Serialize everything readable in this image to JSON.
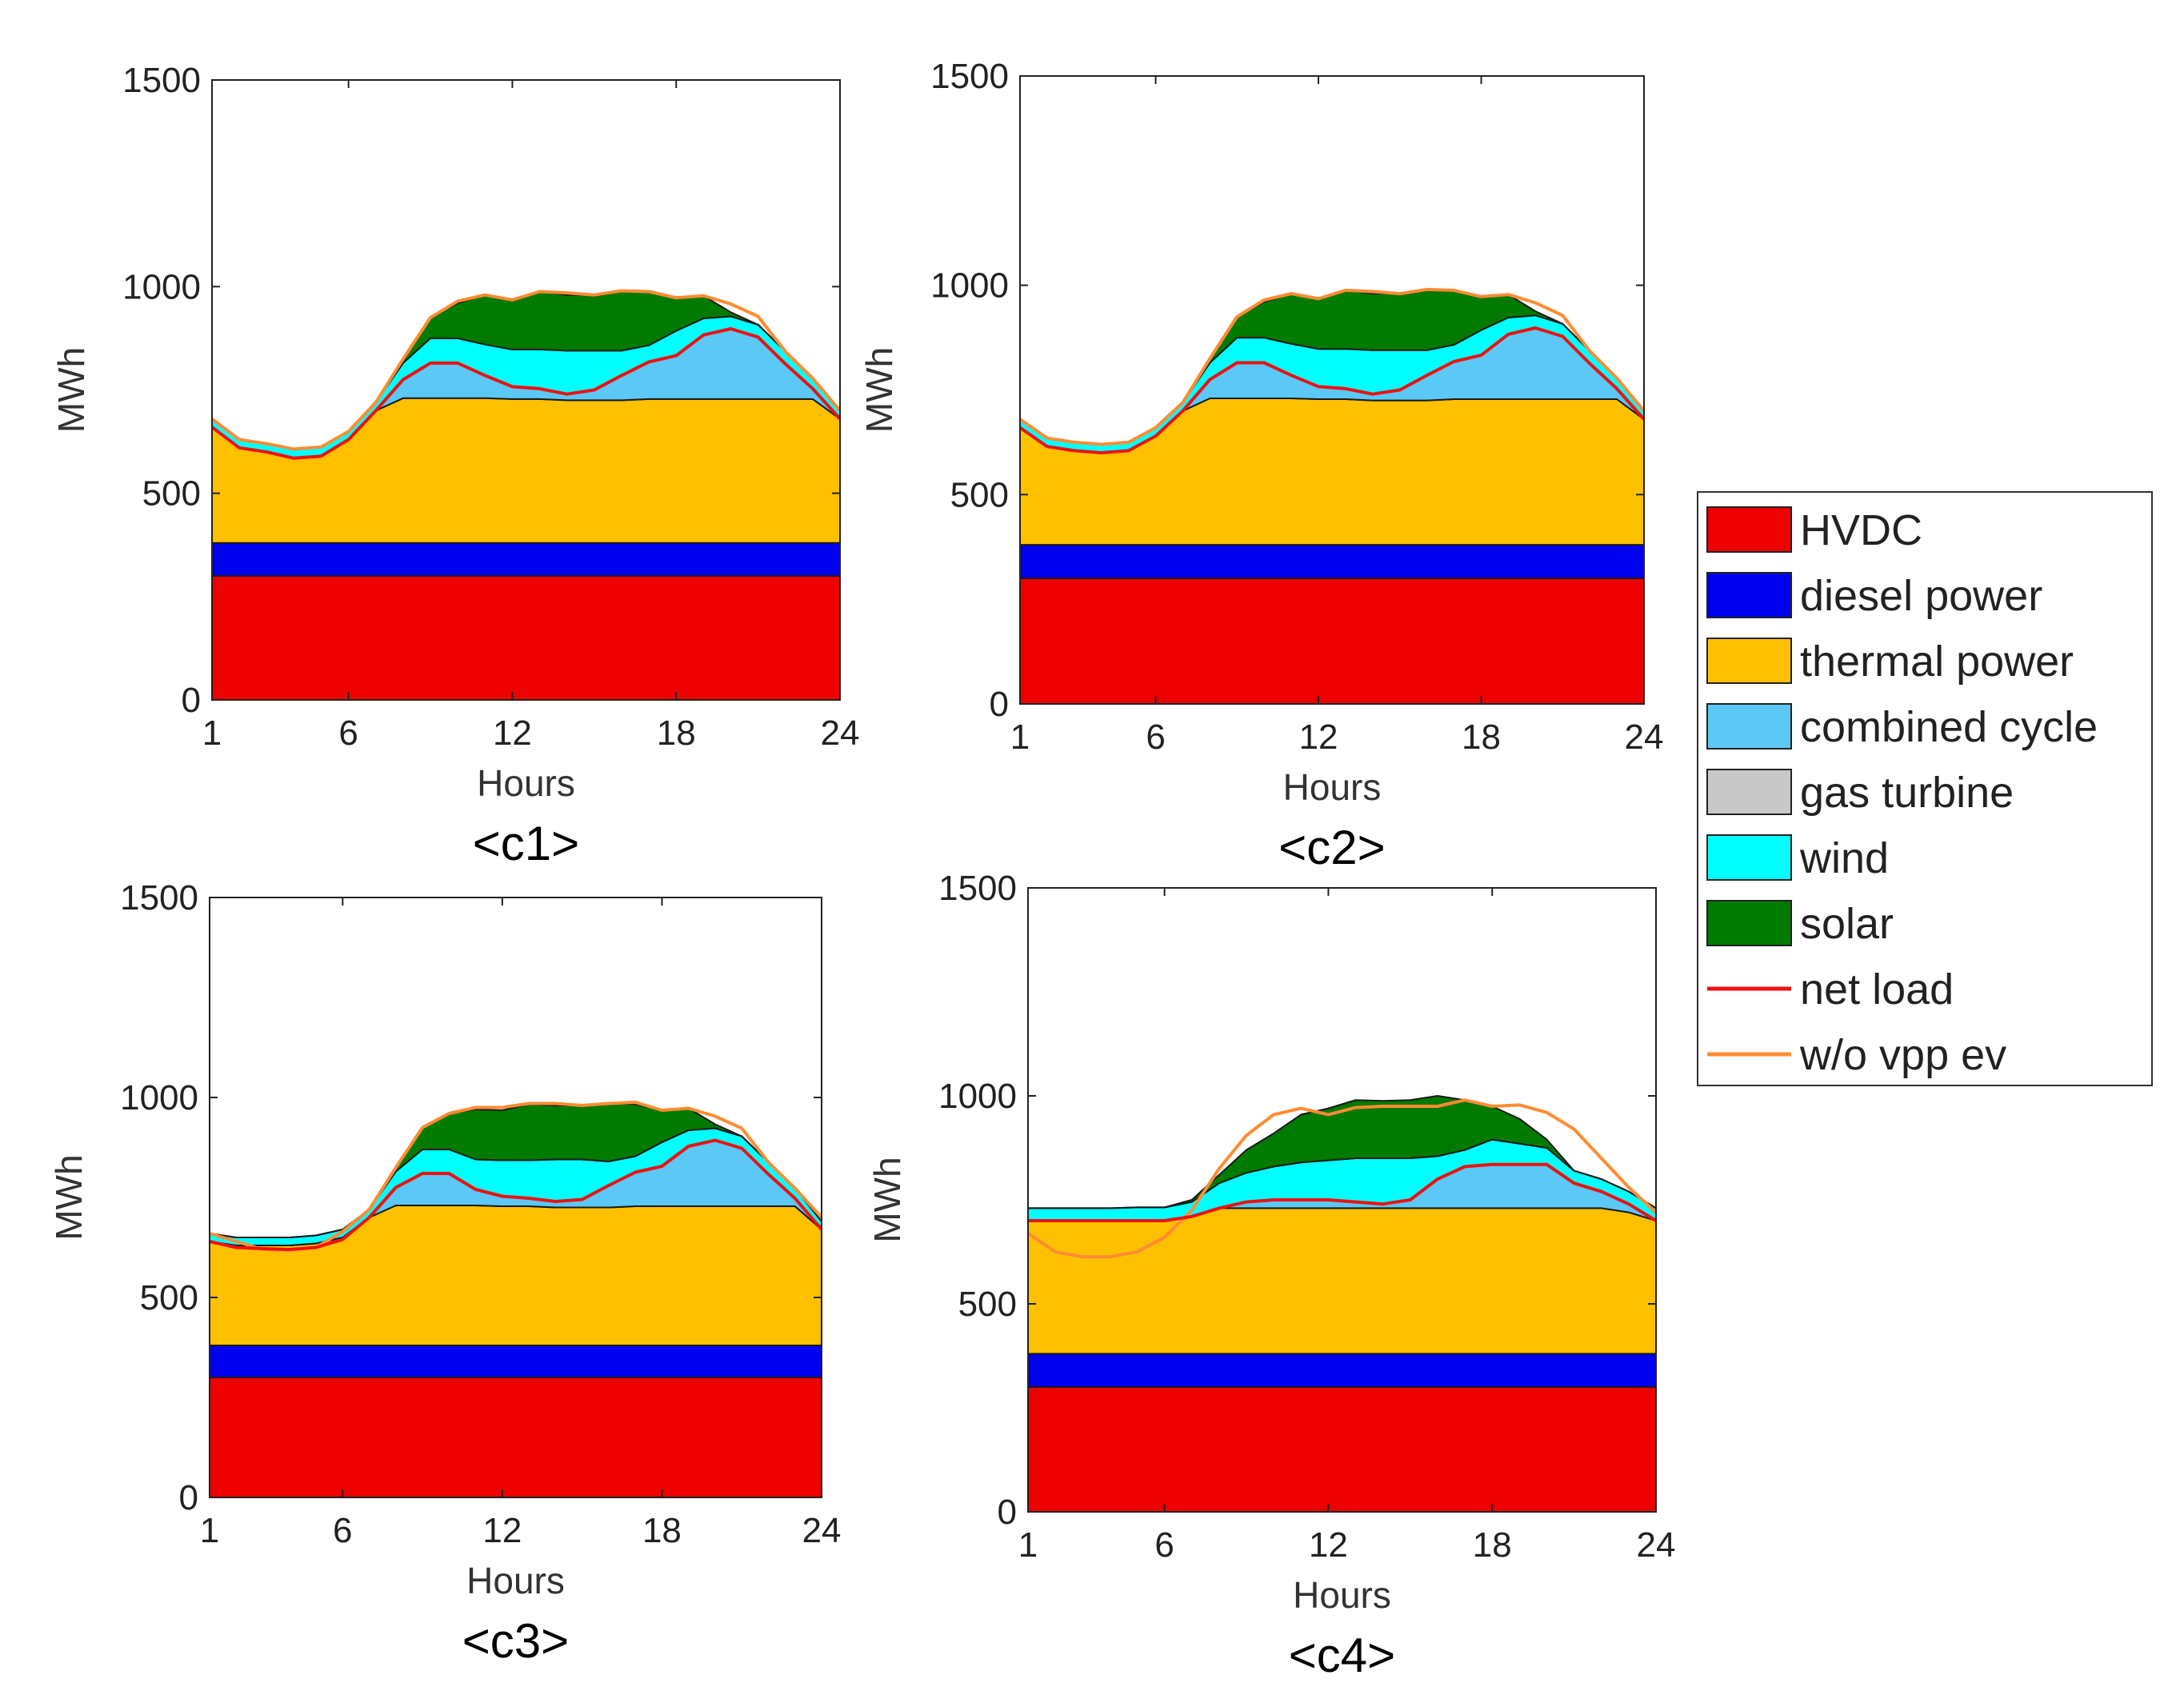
{
  "chart_data": [
    {
      "type": "area",
      "caption": "<c1>",
      "xlabel": "Hours",
      "ylabel": "MWh",
      "xlim": [
        1,
        24
      ],
      "ylim": [
        0,
        1500
      ],
      "xticks": [
        "1",
        "6",
        "12",
        "18",
        "24"
      ],
      "yticks": [
        "0",
        "500",
        "1000",
        "1500"
      ],
      "x": [
        1,
        2,
        3,
        4,
        5,
        6,
        7,
        8,
        9,
        10,
        11,
        12,
        13,
        14,
        15,
        16,
        17,
        18,
        19,
        20,
        21,
        22,
        23,
        24
      ],
      "series": [
        {
          "key": "hvdc",
          "values": [
            300,
            300,
            300,
            300,
            300,
            300,
            300,
            300,
            300,
            300,
            300,
            300,
            300,
            300,
            300,
            300,
            300,
            300,
            300,
            300,
            300,
            300,
            300,
            300
          ]
        },
        {
          "key": "diesel",
          "values": [
            80,
            80,
            80,
            80,
            80,
            80,
            80,
            80,
            80,
            80,
            80,
            80,
            80,
            80,
            80,
            80,
            80,
            80,
            80,
            80,
            80,
            80,
            80,
            80
          ]
        },
        {
          "key": "thermal",
          "values": [
            280,
            230,
            220,
            205,
            210,
            250,
            320,
            350,
            350,
            350,
            350,
            348,
            348,
            345,
            345,
            345,
            348,
            348,
            348,
            348,
            348,
            348,
            348,
            300
          ]
        },
        {
          "key": "combined",
          "values": [
            0,
            0,
            0,
            0,
            0,
            0,
            0,
            45,
            85,
            85,
            55,
            30,
            25,
            15,
            25,
            60,
            90,
            105,
            155,
            170,
            150,
            85,
            25,
            0
          ]
        },
        {
          "key": "gas",
          "values": [
            0,
            0,
            0,
            0,
            0,
            0,
            0,
            0,
            0,
            0,
            0,
            0,
            0,
            0,
            0,
            0,
            0,
            0,
            0,
            0,
            0,
            0,
            0,
            0
          ]
        },
        {
          "key": "wind",
          "values": [
            20,
            20,
            20,
            22,
            22,
            20,
            20,
            40,
            60,
            60,
            75,
            90,
            95,
            105,
            95,
            60,
            40,
            60,
            40,
            30,
            30,
            30,
            25,
            20
          ]
        },
        {
          "key": "solar",
          "values": [
            0,
            0,
            0,
            0,
            0,
            0,
            0,
            10,
            50,
            85,
            120,
            120,
            140,
            135,
            135,
            145,
            130,
            80,
            55,
            10,
            0,
            0,
            0,
            0
          ]
        }
      ],
      "net_load": [
        660,
        610,
        600,
        585,
        590,
        630,
        700,
        775,
        815,
        815,
        785,
        758,
        753,
        740,
        750,
        785,
        818,
        833,
        883,
        898,
        878,
        813,
        753,
        680
      ],
      "no_vpp": [
        680,
        630,
        620,
        607,
        612,
        650,
        720,
        825,
        925,
        965,
        980,
        968,
        988,
        985,
        980,
        990,
        988,
        973,
        978,
        958,
        928,
        843,
        778,
        700
      ]
    },
    {
      "type": "area",
      "caption": "<c2>",
      "xlabel": "Hours",
      "ylabel": "MWh",
      "xlim": [
        1,
        24
      ],
      "ylim": [
        0,
        1500
      ],
      "xticks": [
        "1",
        "6",
        "12",
        "18",
        "24"
      ],
      "yticks": [
        "0",
        "500",
        "1000",
        "1500"
      ],
      "x": [
        1,
        2,
        3,
        4,
        5,
        6,
        7,
        8,
        9,
        10,
        11,
        12,
        13,
        14,
        15,
        16,
        17,
        18,
        19,
        20,
        21,
        22,
        23,
        24
      ],
      "series": [
        {
          "key": "hvdc",
          "values": [
            300,
            300,
            300,
            300,
            300,
            300,
            300,
            300,
            300,
            300,
            300,
            300,
            300,
            300,
            300,
            300,
            300,
            300,
            300,
            300,
            300,
            300,
            300,
            300
          ]
        },
        {
          "key": "diesel",
          "values": [
            80,
            80,
            80,
            80,
            80,
            80,
            80,
            80,
            80,
            80,
            80,
            80,
            80,
            80,
            80,
            80,
            80,
            80,
            80,
            80,
            80,
            80,
            80,
            80
          ]
        },
        {
          "key": "thermal",
          "values": [
            280,
            235,
            225,
            220,
            225,
            260,
            320,
            350,
            350,
            350,
            350,
            348,
            348,
            345,
            345,
            345,
            348,
            348,
            348,
            348,
            348,
            348,
            348,
            300
          ]
        },
        {
          "key": "combined",
          "values": [
            0,
            0,
            0,
            0,
            0,
            0,
            0,
            45,
            85,
            85,
            55,
            30,
            25,
            15,
            25,
            60,
            90,
            105,
            155,
            170,
            150,
            85,
            25,
            0
          ]
        },
        {
          "key": "gas",
          "values": [
            0,
            0,
            0,
            0,
            0,
            0,
            0,
            0,
            0,
            0,
            0,
            0,
            0,
            0,
            0,
            0,
            0,
            0,
            0,
            0,
            0,
            0,
            0,
            0
          ]
        },
        {
          "key": "wind",
          "values": [
            20,
            20,
            20,
            20,
            20,
            20,
            20,
            40,
            60,
            60,
            75,
            90,
            95,
            105,
            95,
            60,
            40,
            60,
            40,
            30,
            30,
            30,
            25,
            20
          ]
        },
        {
          "key": "solar",
          "values": [
            0,
            0,
            0,
            0,
            0,
            0,
            0,
            10,
            50,
            85,
            120,
            120,
            140,
            135,
            135,
            145,
            130,
            80,
            55,
            10,
            0,
            0,
            0,
            0
          ]
        }
      ],
      "net_load": [
        660,
        615,
        605,
        600,
        605,
        640,
        700,
        775,
        815,
        815,
        785,
        758,
        753,
        740,
        750,
        785,
        818,
        833,
        883,
        898,
        878,
        813,
        753,
        680
      ],
      "no_vpp": [
        680,
        635,
        625,
        620,
        625,
        660,
        720,
        825,
        925,
        965,
        980,
        968,
        988,
        985,
        980,
        990,
        988,
        973,
        978,
        958,
        928,
        843,
        778,
        700
      ]
    },
    {
      "type": "area",
      "caption": "<c3>",
      "xlabel": "Hours",
      "ylabel": "MWh",
      "xlim": [
        1,
        24
      ],
      "ylim": [
        0,
        1500
      ],
      "xticks": [
        "1",
        "6",
        "12",
        "18",
        "24"
      ],
      "yticks": [
        "0",
        "500",
        "1000",
        "1500"
      ],
      "x": [
        1,
        2,
        3,
        4,
        5,
        6,
        7,
        8,
        9,
        10,
        11,
        12,
        13,
        14,
        15,
        16,
        17,
        18,
        19,
        20,
        21,
        22,
        23,
        24
      ],
      "series": [
        {
          "key": "hvdc",
          "values": [
            300,
            300,
            300,
            300,
            300,
            300,
            300,
            300,
            300,
            300,
            300,
            300,
            300,
            300,
            300,
            300,
            300,
            300,
            300,
            300,
            300,
            300,
            300,
            300
          ]
        },
        {
          "key": "diesel",
          "values": [
            80,
            80,
            80,
            80,
            80,
            80,
            80,
            80,
            80,
            80,
            80,
            80,
            80,
            80,
            80,
            80,
            80,
            80,
            80,
            80,
            80,
            80,
            80,
            80
          ]
        },
        {
          "key": "thermal",
          "values": [
            260,
            250,
            250,
            250,
            255,
            270,
            320,
            350,
            350,
            350,
            350,
            348,
            348,
            345,
            345,
            345,
            348,
            348,
            348,
            348,
            348,
            348,
            348,
            290
          ]
        },
        {
          "key": "combined",
          "values": [
            0,
            0,
            0,
            0,
            0,
            0,
            0,
            45,
            80,
            80,
            40,
            25,
            20,
            15,
            20,
            55,
            85,
            100,
            150,
            165,
            145,
            80,
            20,
            0
          ]
        },
        {
          "key": "gas",
          "values": [
            0,
            0,
            0,
            0,
            0,
            0,
            0,
            0,
            0,
            0,
            0,
            0,
            0,
            0,
            0,
            0,
            0,
            0,
            0,
            0,
            0,
            0,
            0,
            0
          ]
        },
        {
          "key": "wind",
          "values": [
            20,
            20,
            20,
            20,
            20,
            20,
            20,
            40,
            60,
            60,
            75,
            90,
            95,
            105,
            100,
            60,
            40,
            60,
            40,
            30,
            30,
            30,
            25,
            20
          ]
        },
        {
          "key": "solar",
          "values": [
            0,
            0,
            0,
            0,
            0,
            0,
            0,
            10,
            55,
            90,
            125,
            125,
            140,
            135,
            135,
            145,
            130,
            80,
            55,
            10,
            0,
            0,
            0,
            0
          ]
        }
      ],
      "net_load": [
        640,
        625,
        622,
        620,
        625,
        645,
        700,
        775,
        810,
        810,
        770,
        753,
        748,
        740,
        745,
        780,
        813,
        828,
        878,
        893,
        873,
        808,
        748,
        670
      ],
      "no_vpp": [
        660,
        640,
        620,
        618,
        625,
        665,
        720,
        825,
        925,
        960,
        975,
        975,
        985,
        985,
        980,
        985,
        988,
        968,
        973,
        953,
        923,
        838,
        773,
        700
      ]
    },
    {
      "type": "area",
      "caption": "<c4>",
      "xlabel": "Hours",
      "ylabel": "MWh",
      "xlim": [
        1,
        24
      ],
      "ylim": [
        0,
        1500
      ],
      "xticks": [
        "1",
        "6",
        "12",
        "18",
        "24"
      ],
      "yticks": [
        "0",
        "500",
        "1000",
        "1500"
      ],
      "x": [
        1,
        2,
        3,
        4,
        5,
        6,
        7,
        8,
        9,
        10,
        11,
        12,
        13,
        14,
        15,
        16,
        17,
        18,
        19,
        20,
        21,
        22,
        23,
        24
      ],
      "series": [
        {
          "key": "hvdc",
          "values": [
            300,
            300,
            300,
            300,
            300,
            300,
            300,
            300,
            300,
            300,
            300,
            300,
            300,
            300,
            300,
            300,
            300,
            300,
            300,
            300,
            300,
            300,
            300,
            300
          ]
        },
        {
          "key": "diesel",
          "values": [
            80,
            80,
            80,
            80,
            80,
            80,
            80,
            80,
            80,
            80,
            80,
            80,
            80,
            80,
            80,
            80,
            80,
            80,
            80,
            80,
            80,
            80,
            80,
            80
          ]
        },
        {
          "key": "thermal",
          "values": [
            320,
            320,
            320,
            320,
            320,
            320,
            330,
            350,
            350,
            350,
            350,
            350,
            350,
            350,
            350,
            350,
            350,
            350,
            350,
            350,
            350,
            350,
            340,
            320
          ]
        },
        {
          "key": "combined",
          "values": [
            0,
            0,
            0,
            0,
            0,
            0,
            0,
            0,
            15,
            20,
            20,
            20,
            15,
            10,
            20,
            70,
            100,
            105,
            105,
            105,
            60,
            40,
            20,
            0
          ]
        },
        {
          "key": "gas",
          "values": [
            0,
            0,
            0,
            0,
            0,
            0,
            0,
            0,
            0,
            0,
            0,
            0,
            0,
            0,
            0,
            0,
            0,
            0,
            0,
            0,
            0,
            0,
            0,
            0
          ]
        },
        {
          "key": "wind",
          "values": [
            30,
            30,
            30,
            30,
            32,
            32,
            35,
            60,
            70,
            80,
            90,
            95,
            105,
            110,
            100,
            55,
            40,
            60,
            50,
            40,
            30,
            30,
            30,
            30
          ]
        },
        {
          "key": "solar",
          "values": [
            0,
            0,
            0,
            0,
            0,
            0,
            5,
            20,
            55,
            80,
            115,
            125,
            140,
            138,
            140,
            145,
            120,
            80,
            60,
            20,
            0,
            0,
            0,
            0
          ]
        }
      ],
      "net_load": [
        700,
        700,
        700,
        700,
        700,
        700,
        710,
        730,
        745,
        750,
        750,
        750,
        745,
        740,
        750,
        800,
        830,
        835,
        835,
        835,
        790,
        770,
        740,
        700
      ],
      "no_vpp": [
        670,
        625,
        613,
        613,
        625,
        660,
        725,
        825,
        905,
        955,
        970,
        955,
        972,
        975,
        975,
        975,
        990,
        975,
        978,
        960,
        920,
        850,
        780,
        720
      ]
    }
  ],
  "legend": {
    "items": [
      {
        "key": "hvdc",
        "label": "HVDC",
        "kind": "patch",
        "color": "#ee0000"
      },
      {
        "key": "diesel",
        "label": "diesel power",
        "kind": "patch",
        "color": "#0000ee"
      },
      {
        "key": "thermal",
        "label": "thermal power",
        "kind": "patch",
        "color": "#ffc000"
      },
      {
        "key": "combined",
        "label": "combined cycle",
        "kind": "patch",
        "color": "#5bc8f5"
      },
      {
        "key": "gas",
        "label": "gas turbine",
        "kind": "patch",
        "color": "#c8c8c8"
      },
      {
        "key": "wind",
        "label": "wind",
        "kind": "patch",
        "color": "#00ffff"
      },
      {
        "key": "solar",
        "label": "solar",
        "kind": "patch",
        "color": "#007a00"
      },
      {
        "key": "net_load",
        "label": "net load",
        "kind": "line",
        "color": "#ee1111"
      },
      {
        "key": "no_vpp",
        "label": "w/o vpp ev",
        "kind": "line",
        "color": "#ff8c33"
      }
    ]
  }
}
